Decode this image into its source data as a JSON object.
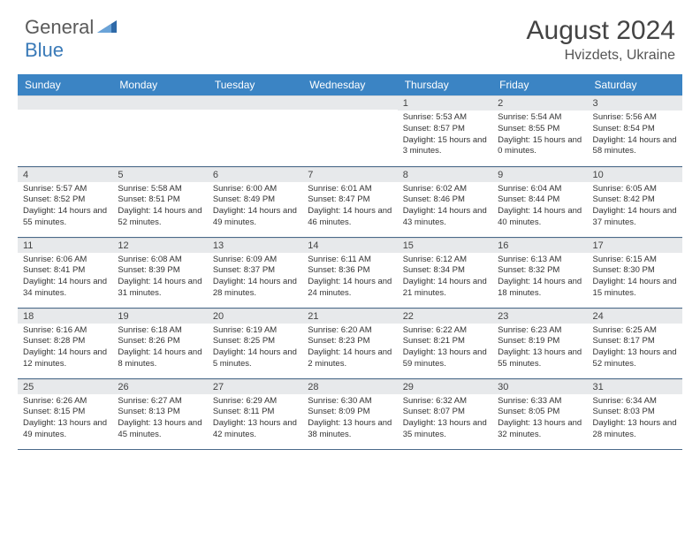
{
  "logo": {
    "text1": "General",
    "text2": "Blue"
  },
  "title": "August 2024",
  "location": "Hvizdets, Ukraine",
  "colors": {
    "header_bg": "#3b84c4",
    "header_text": "#ffffff",
    "daynum_bg": "#e7e9eb",
    "border": "#4a6a8a",
    "logo_blue": "#3a7ab8"
  },
  "weekdays": [
    "Sunday",
    "Monday",
    "Tuesday",
    "Wednesday",
    "Thursday",
    "Friday",
    "Saturday"
  ],
  "weeks": [
    [
      {
        "empty": true
      },
      {
        "empty": true
      },
      {
        "empty": true
      },
      {
        "empty": true
      },
      {
        "n": "1",
        "sr": "Sunrise: 5:53 AM",
        "ss": "Sunset: 8:57 PM",
        "dl": "Daylight: 15 hours and 3 minutes."
      },
      {
        "n": "2",
        "sr": "Sunrise: 5:54 AM",
        "ss": "Sunset: 8:55 PM",
        "dl": "Daylight: 15 hours and 0 minutes."
      },
      {
        "n": "3",
        "sr": "Sunrise: 5:56 AM",
        "ss": "Sunset: 8:54 PM",
        "dl": "Daylight: 14 hours and 58 minutes."
      }
    ],
    [
      {
        "n": "4",
        "sr": "Sunrise: 5:57 AM",
        "ss": "Sunset: 8:52 PM",
        "dl": "Daylight: 14 hours and 55 minutes."
      },
      {
        "n": "5",
        "sr": "Sunrise: 5:58 AM",
        "ss": "Sunset: 8:51 PM",
        "dl": "Daylight: 14 hours and 52 minutes."
      },
      {
        "n": "6",
        "sr": "Sunrise: 6:00 AM",
        "ss": "Sunset: 8:49 PM",
        "dl": "Daylight: 14 hours and 49 minutes."
      },
      {
        "n": "7",
        "sr": "Sunrise: 6:01 AM",
        "ss": "Sunset: 8:47 PM",
        "dl": "Daylight: 14 hours and 46 minutes."
      },
      {
        "n": "8",
        "sr": "Sunrise: 6:02 AM",
        "ss": "Sunset: 8:46 PM",
        "dl": "Daylight: 14 hours and 43 minutes."
      },
      {
        "n": "9",
        "sr": "Sunrise: 6:04 AM",
        "ss": "Sunset: 8:44 PM",
        "dl": "Daylight: 14 hours and 40 minutes."
      },
      {
        "n": "10",
        "sr": "Sunrise: 6:05 AM",
        "ss": "Sunset: 8:42 PM",
        "dl": "Daylight: 14 hours and 37 minutes."
      }
    ],
    [
      {
        "n": "11",
        "sr": "Sunrise: 6:06 AM",
        "ss": "Sunset: 8:41 PM",
        "dl": "Daylight: 14 hours and 34 minutes."
      },
      {
        "n": "12",
        "sr": "Sunrise: 6:08 AM",
        "ss": "Sunset: 8:39 PM",
        "dl": "Daylight: 14 hours and 31 minutes."
      },
      {
        "n": "13",
        "sr": "Sunrise: 6:09 AM",
        "ss": "Sunset: 8:37 PM",
        "dl": "Daylight: 14 hours and 28 minutes."
      },
      {
        "n": "14",
        "sr": "Sunrise: 6:11 AM",
        "ss": "Sunset: 8:36 PM",
        "dl": "Daylight: 14 hours and 24 minutes."
      },
      {
        "n": "15",
        "sr": "Sunrise: 6:12 AM",
        "ss": "Sunset: 8:34 PM",
        "dl": "Daylight: 14 hours and 21 minutes."
      },
      {
        "n": "16",
        "sr": "Sunrise: 6:13 AM",
        "ss": "Sunset: 8:32 PM",
        "dl": "Daylight: 14 hours and 18 minutes."
      },
      {
        "n": "17",
        "sr": "Sunrise: 6:15 AM",
        "ss": "Sunset: 8:30 PM",
        "dl": "Daylight: 14 hours and 15 minutes."
      }
    ],
    [
      {
        "n": "18",
        "sr": "Sunrise: 6:16 AM",
        "ss": "Sunset: 8:28 PM",
        "dl": "Daylight: 14 hours and 12 minutes."
      },
      {
        "n": "19",
        "sr": "Sunrise: 6:18 AM",
        "ss": "Sunset: 8:26 PM",
        "dl": "Daylight: 14 hours and 8 minutes."
      },
      {
        "n": "20",
        "sr": "Sunrise: 6:19 AM",
        "ss": "Sunset: 8:25 PM",
        "dl": "Daylight: 14 hours and 5 minutes."
      },
      {
        "n": "21",
        "sr": "Sunrise: 6:20 AM",
        "ss": "Sunset: 8:23 PM",
        "dl": "Daylight: 14 hours and 2 minutes."
      },
      {
        "n": "22",
        "sr": "Sunrise: 6:22 AM",
        "ss": "Sunset: 8:21 PM",
        "dl": "Daylight: 13 hours and 59 minutes."
      },
      {
        "n": "23",
        "sr": "Sunrise: 6:23 AM",
        "ss": "Sunset: 8:19 PM",
        "dl": "Daylight: 13 hours and 55 minutes."
      },
      {
        "n": "24",
        "sr": "Sunrise: 6:25 AM",
        "ss": "Sunset: 8:17 PM",
        "dl": "Daylight: 13 hours and 52 minutes."
      }
    ],
    [
      {
        "n": "25",
        "sr": "Sunrise: 6:26 AM",
        "ss": "Sunset: 8:15 PM",
        "dl": "Daylight: 13 hours and 49 minutes."
      },
      {
        "n": "26",
        "sr": "Sunrise: 6:27 AM",
        "ss": "Sunset: 8:13 PM",
        "dl": "Daylight: 13 hours and 45 minutes."
      },
      {
        "n": "27",
        "sr": "Sunrise: 6:29 AM",
        "ss": "Sunset: 8:11 PM",
        "dl": "Daylight: 13 hours and 42 minutes."
      },
      {
        "n": "28",
        "sr": "Sunrise: 6:30 AM",
        "ss": "Sunset: 8:09 PM",
        "dl": "Daylight: 13 hours and 38 minutes."
      },
      {
        "n": "29",
        "sr": "Sunrise: 6:32 AM",
        "ss": "Sunset: 8:07 PM",
        "dl": "Daylight: 13 hours and 35 minutes."
      },
      {
        "n": "30",
        "sr": "Sunrise: 6:33 AM",
        "ss": "Sunset: 8:05 PM",
        "dl": "Daylight: 13 hours and 32 minutes."
      },
      {
        "n": "31",
        "sr": "Sunrise: 6:34 AM",
        "ss": "Sunset: 8:03 PM",
        "dl": "Daylight: 13 hours and 28 minutes."
      }
    ]
  ]
}
